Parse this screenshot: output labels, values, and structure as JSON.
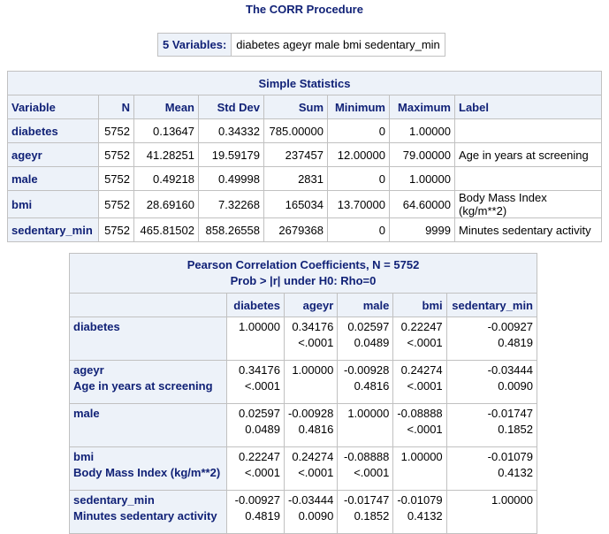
{
  "title": "The CORR Procedure",
  "variables_box": {
    "label": "5 Variables:",
    "value": "diabetes ageyr male bmi sedentary_min"
  },
  "simple_stats": {
    "caption": "Simple Statistics",
    "headers": [
      "Variable",
      "N",
      "Mean",
      "Std Dev",
      "Sum",
      "Minimum",
      "Maximum",
      "Label"
    ],
    "rows": [
      {
        "variable": "diabetes",
        "n": "5752",
        "mean": "0.13647",
        "std": "0.34332",
        "sum": "785.00000",
        "min": "0",
        "max": "1.00000",
        "label": ""
      },
      {
        "variable": "ageyr",
        "n": "5752",
        "mean": "41.28251",
        "std": "19.59179",
        "sum": "237457",
        "min": "12.00000",
        "max": "79.00000",
        "label": "Age in years at screening"
      },
      {
        "variable": "male",
        "n": "5752",
        "mean": "0.49218",
        "std": "0.49998",
        "sum": "2831",
        "min": "0",
        "max": "1.00000",
        "label": ""
      },
      {
        "variable": "bmi",
        "n": "5752",
        "mean": "28.69160",
        "std": "7.32268",
        "sum": "165034",
        "min": "13.70000",
        "max": "64.60000",
        "label": "Body Mass Index (kg/m**2)"
      },
      {
        "variable": "sedentary_min",
        "n": "5752",
        "mean": "465.81502",
        "std": "858.26558",
        "sum": "2679368",
        "min": "0",
        "max": "9999",
        "label": "Minutes sedentary activity"
      }
    ]
  },
  "pearson": {
    "caption_line1": "Pearson Correlation Coefficients, N = 5752",
    "caption_line2": "Prob > |r| under H0: Rho=0",
    "headers": [
      "diabetes",
      "ageyr",
      "male",
      "bmi",
      "sedentary_min"
    ],
    "rows": [
      {
        "name": "diabetes",
        "label": "",
        "cells": [
          {
            "r": "1.00000",
            "p": ""
          },
          {
            "r": "0.34176",
            "p": "<.0001"
          },
          {
            "r": "0.02597",
            "p": "0.0489"
          },
          {
            "r": "0.22247",
            "p": "<.0001"
          },
          {
            "r": "-0.00927",
            "p": "0.4819"
          }
        ]
      },
      {
        "name": "ageyr",
        "label": "Age in years at screening",
        "cells": [
          {
            "r": "0.34176",
            "p": "<.0001"
          },
          {
            "r": "1.00000",
            "p": ""
          },
          {
            "r": "-0.00928",
            "p": "0.4816"
          },
          {
            "r": "0.24274",
            "p": "<.0001"
          },
          {
            "r": "-0.03444",
            "p": "0.0090"
          }
        ]
      },
      {
        "name": "male",
        "label": "",
        "cells": [
          {
            "r": "0.02597",
            "p": "0.0489"
          },
          {
            "r": "-0.00928",
            "p": "0.4816"
          },
          {
            "r": "1.00000",
            "p": ""
          },
          {
            "r": "-0.08888",
            "p": "<.0001"
          },
          {
            "r": "-0.01747",
            "p": "0.1852"
          }
        ]
      },
      {
        "name": "bmi",
        "label": "Body Mass Index (kg/m**2)",
        "cells": [
          {
            "r": "0.22247",
            "p": "<.0001"
          },
          {
            "r": "0.24274",
            "p": "<.0001"
          },
          {
            "r": "-0.08888",
            "p": "<.0001"
          },
          {
            "r": "1.00000",
            "p": ""
          },
          {
            "r": "-0.01079",
            "p": "0.4132"
          }
        ]
      },
      {
        "name": "sedentary_min",
        "label": "Minutes sedentary activity",
        "cells": [
          {
            "r": "-0.00927",
            "p": "0.4819"
          },
          {
            "r": "-0.03444",
            "p": "0.0090"
          },
          {
            "r": "-0.01747",
            "p": "0.1852"
          },
          {
            "r": "-0.01079",
            "p": "0.4132"
          },
          {
            "r": "1.00000",
            "p": ""
          }
        ]
      }
    ]
  }
}
